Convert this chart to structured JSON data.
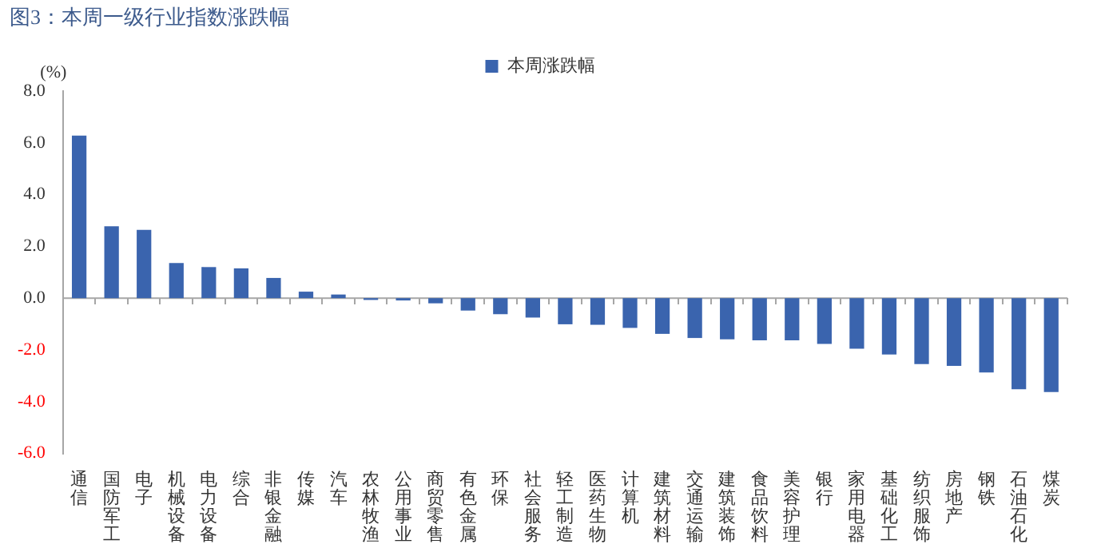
{
  "chart_data": {
    "type": "bar",
    "title": "图3：本周一级行业指数涨跌幅",
    "ylabel": "(%)",
    "categories": [
      "通信",
      "国防军工",
      "电子",
      "机械设备",
      "电力设备",
      "综合",
      "非银金融",
      "传媒",
      "汽车",
      "农林牧渔",
      "公用事业",
      "商贸零售",
      "有色金属",
      "环保",
      "社会服务",
      "轻工制造",
      "医药生物",
      "计算机",
      "建筑材料",
      "交通运输",
      "建筑装饰",
      "食品饮料",
      "美容护理",
      "银行",
      "家用电器",
      "基础化工",
      "纺织服饰",
      "房地产",
      "钢铁",
      "石油石化",
      "煤炭"
    ],
    "series": [
      {
        "name": "本周涨跌幅",
        "color": "#3a64ae",
        "values": [
          6.28,
          2.78,
          2.64,
          1.36,
          1.2,
          1.15,
          0.78,
          0.25,
          0.14,
          -0.07,
          -0.09,
          -0.2,
          -0.48,
          -0.62,
          -0.75,
          -1.01,
          -1.03,
          -1.15,
          -1.38,
          -1.54,
          -1.59,
          -1.63,
          -1.63,
          -1.77,
          -1.95,
          -2.18,
          -2.55,
          -2.62,
          -2.87,
          -3.52,
          -3.63
        ]
      }
    ],
    "ylim": [
      -6,
      8
    ],
    "yticks": [
      {
        "value": -6,
        "label": "-6.0"
      },
      {
        "value": -4,
        "label": "-4.0"
      },
      {
        "value": -2,
        "label": "-2.0"
      },
      {
        "value": 0,
        "label": "0.0"
      },
      {
        "value": 2,
        "label": "2.0"
      },
      {
        "value": 4,
        "label": "4.0"
      },
      {
        "value": 6,
        "label": "6.0"
      },
      {
        "value": 8,
        "label": "8.0"
      }
    ],
    "ref_lines": [
      {
        "axis": "y",
        "value": 0,
        "color": "#a6a6a6",
        "line_style": "solid"
      }
    ],
    "grid": false,
    "legend": "top"
  }
}
